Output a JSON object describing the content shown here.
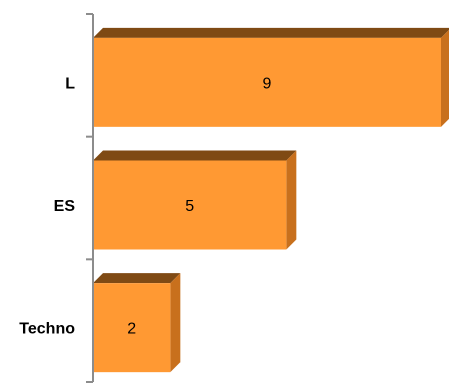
{
  "chart_data": {
    "type": "bar",
    "orientation": "horizontal",
    "style": "3d",
    "categories": [
      "L",
      "ES",
      "Techno"
    ],
    "values": [
      9,
      5,
      2
    ],
    "xlim": [
      0,
      9
    ],
    "grid": false,
    "legend": "none",
    "colors": {
      "front": "#ff9933",
      "top": "#7f4a14",
      "side": "#c8701d",
      "axis": "#8c8c8c"
    }
  }
}
